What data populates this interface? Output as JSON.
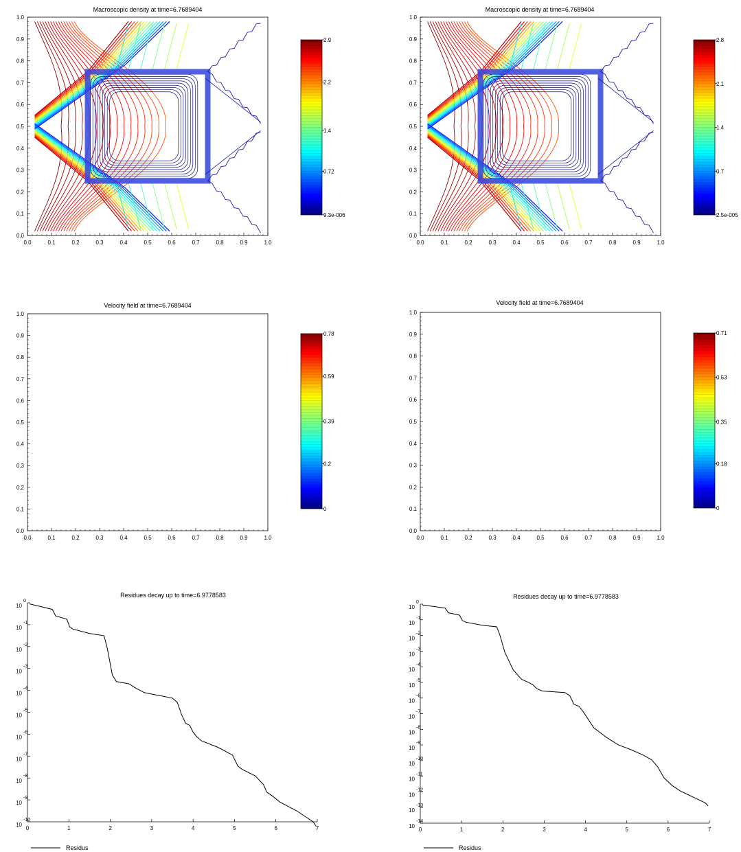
{
  "chart_data": [
    {
      "id": "density-left",
      "type": "contour",
      "title": "Macroscopic density at time=6.7689404",
      "xlim": [
        0,
        1
      ],
      "ylim": [
        0,
        1
      ],
      "xticks": [
        0.0,
        0.1,
        0.2,
        0.3,
        0.4,
        0.5,
        0.6,
        0.7,
        0.8,
        0.9,
        1.0
      ],
      "yticks": [
        0.0,
        0.1,
        0.2,
        0.3,
        0.4,
        0.5,
        0.6,
        0.7,
        0.8,
        0.9,
        1.0
      ],
      "tick_labels": [
        "0.0",
        "0.1",
        "0.2",
        "0.3",
        "0.4",
        "0.5",
        "0.6",
        "0.7",
        "0.8",
        "0.9",
        "1.0"
      ],
      "obstacle": {
        "x": [
          0.25,
          0.75
        ],
        "y": [
          0.25,
          0.75
        ]
      },
      "colorbar": {
        "min_label": "9.3e-006",
        "labels": [
          "9.3e-006",
          "0.72",
          "1.4",
          "2.2",
          "2.9"
        ],
        "values": [
          9.3e-06,
          0.72,
          1.4,
          2.2,
          2.9
        ]
      },
      "colormap": "jet"
    },
    {
      "id": "density-right",
      "type": "contour",
      "title": "Macroscopic density at time=6.7689404",
      "xlim": [
        0,
        1
      ],
      "ylim": [
        0,
        1
      ],
      "xticks": [
        0.0,
        0.1,
        0.2,
        0.3,
        0.4,
        0.5,
        0.6,
        0.7,
        0.8,
        0.9,
        1.0
      ],
      "yticks": [
        0.0,
        0.1,
        0.2,
        0.3,
        0.4,
        0.5,
        0.6,
        0.7,
        0.8,
        0.9,
        1.0
      ],
      "tick_labels": [
        "0.0",
        "0.1",
        "0.2",
        "0.3",
        "0.4",
        "0.5",
        "0.6",
        "0.7",
        "0.8",
        "0.9",
        "1.0"
      ],
      "obstacle": {
        "x": [
          0.25,
          0.75
        ],
        "y": [
          0.25,
          0.75
        ]
      },
      "colorbar": {
        "min_label": "2.5e-005",
        "labels": [
          "2.5e-005",
          "0.7",
          "1.4",
          "2.1",
          "2.8"
        ],
        "values": [
          2.5e-05,
          0.7,
          1.4,
          2.1,
          2.8
        ]
      },
      "colormap": "jet"
    },
    {
      "id": "velocity-left",
      "type": "quiver",
      "title": "Velocity field at time=6.7689404",
      "xlim": [
        0,
        1
      ],
      "ylim": [
        0,
        1
      ],
      "xticks": [
        0.0,
        0.1,
        0.2,
        0.3,
        0.4,
        0.5,
        0.6,
        0.7,
        0.8,
        0.9,
        1.0
      ],
      "yticks": [
        0.0,
        0.1,
        0.2,
        0.3,
        0.4,
        0.5,
        0.6,
        0.7,
        0.8,
        0.9,
        1.0
      ],
      "tick_labels": [
        "0.0",
        "0.1",
        "0.2",
        "0.3",
        "0.4",
        "0.5",
        "0.6",
        "0.7",
        "0.8",
        "0.9",
        "1.0"
      ],
      "obstacle": {
        "x": [
          0.25,
          0.75
        ],
        "y": [
          0.25,
          0.75
        ]
      },
      "colorbar": {
        "labels": [
          "0",
          "0.2",
          "0.39",
          "0.59",
          "0.78"
        ],
        "values": [
          0,
          0.2,
          0.39,
          0.59,
          0.78
        ]
      },
      "colormap": "jet"
    },
    {
      "id": "velocity-right",
      "type": "quiver",
      "title": "Velocity field at time=6.7689404",
      "xlim": [
        0,
        1
      ],
      "ylim": [
        0,
        1
      ],
      "xticks": [
        0.0,
        0.1,
        0.2,
        0.3,
        0.4,
        0.5,
        0.6,
        0.7,
        0.8,
        0.9,
        1.0
      ],
      "yticks": [
        0.0,
        0.1,
        0.2,
        0.3,
        0.4,
        0.5,
        0.6,
        0.7,
        0.8,
        0.9,
        1.0
      ],
      "tick_labels": [
        "0.0",
        "0.1",
        "0.2",
        "0.3",
        "0.4",
        "0.5",
        "0.6",
        "0.7",
        "0.8",
        "0.9",
        "1.0"
      ],
      "obstacle": {
        "x": [
          0.25,
          0.75
        ],
        "y": [
          0.25,
          0.75
        ]
      },
      "colorbar": {
        "labels": [
          "0",
          "0.18",
          "0.35",
          "0.53",
          "0.71"
        ],
        "values": [
          0,
          0.18,
          0.35,
          0.53,
          0.71
        ]
      },
      "colormap": "jet"
    },
    {
      "id": "residues-left",
      "type": "line",
      "title": "Residues decay up to time=6.9778583",
      "yscale": "log",
      "xlim": [
        0,
        7
      ],
      "xticks": [
        0,
        1,
        2,
        3,
        4,
        5,
        6,
        7
      ],
      "yexp": [
        0,
        -1,
        -2,
        -3,
        -4,
        -5,
        -6,
        -7,
        -8,
        -9,
        -10
      ],
      "legend": "Residus",
      "legend_position": "bottom-left",
      "series": [
        {
          "name": "Residus",
          "x": [
            0.05,
            0.6,
            0.68,
            0.95,
            1.02,
            1.1,
            1.5,
            1.85,
            1.93,
            2.05,
            2.15,
            2.45,
            2.62,
            2.72,
            2.82,
            2.95,
            3.5,
            3.62,
            3.72,
            3.82,
            3.92,
            4.0,
            4.08,
            4.2,
            4.6,
            4.95,
            5.08,
            5.18,
            5.5,
            5.7,
            5.78,
            5.9,
            6.1,
            6.3,
            6.5,
            6.7,
            6.9,
            6.97
          ],
          "y": [
            -0.05,
            -0.3,
            -0.6,
            -0.75,
            -1.1,
            -1.2,
            -1.4,
            -1.5,
            -2.1,
            -3.3,
            -3.6,
            -3.7,
            -3.9,
            -4.0,
            -4.1,
            -4.15,
            -4.35,
            -4.55,
            -5.1,
            -5.5,
            -5.6,
            -5.9,
            -6.1,
            -6.3,
            -6.6,
            -6.95,
            -7.45,
            -7.6,
            -7.9,
            -8.3,
            -8.65,
            -8.8,
            -9.1,
            -9.3,
            -9.5,
            -9.75,
            -10.0,
            -10.2
          ]
        }
      ]
    },
    {
      "id": "residues-right",
      "type": "line",
      "title": "Residues decay up to time=6.9778583",
      "yscale": "log",
      "xlim": [
        0,
        7
      ],
      "xticks": [
        0,
        1,
        2,
        3,
        4,
        5,
        6,
        7
      ],
      "yexp": [
        0,
        -1,
        -2,
        -3,
        -4,
        -5,
        -6,
        -7,
        -8,
        -9,
        -10,
        -11,
        -12,
        -13,
        -14
      ],
      "legend": "Residus",
      "legend_position": "bottom-left",
      "series": [
        {
          "name": "Residus",
          "x": [
            0.05,
            0.6,
            0.68,
            0.95,
            1.02,
            1.1,
            1.5,
            1.85,
            1.93,
            2.05,
            2.25,
            2.45,
            2.62,
            2.72,
            2.82,
            2.95,
            3.5,
            3.62,
            3.72,
            3.85,
            3.95,
            4.05,
            4.2,
            4.5,
            4.8,
            5.1,
            5.4,
            5.6,
            5.75,
            5.9,
            6.1,
            6.3,
            6.5,
            6.7,
            6.9,
            6.97
          ],
          "y": [
            -0.05,
            -0.25,
            -0.55,
            -0.7,
            -1.05,
            -1.15,
            -1.35,
            -1.45,
            -2.0,
            -3.1,
            -4.2,
            -4.8,
            -5.0,
            -5.15,
            -5.4,
            -5.55,
            -5.65,
            -5.85,
            -6.4,
            -6.55,
            -6.9,
            -7.3,
            -7.9,
            -8.5,
            -9.0,
            -9.3,
            -9.65,
            -9.95,
            -10.4,
            -11.1,
            -11.6,
            -11.95,
            -12.2,
            -12.45,
            -12.7,
            -12.9
          ]
        }
      ]
    }
  ]
}
